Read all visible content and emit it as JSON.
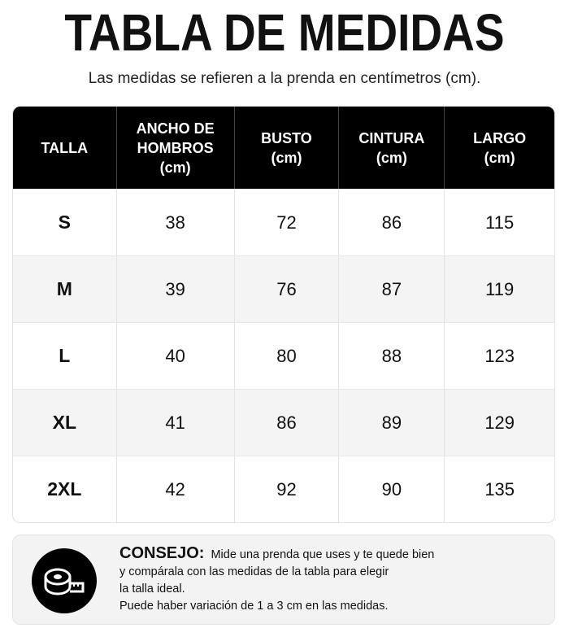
{
  "header": {
    "title": "TABLA DE MEDIDAS",
    "subtitle": "Las medidas se refieren a la prenda en centímetros (cm)."
  },
  "table": {
    "columns": [
      "TALLA",
      "ANCHO DE\nHOMBROS\n(cm)",
      "BUSTO\n(cm)",
      "CINTURA\n(cm)",
      "LARGO\n(cm)"
    ],
    "rows": [
      [
        "S",
        "38",
        "72",
        "86",
        "115"
      ],
      [
        "M",
        "39",
        "76",
        "87",
        "119"
      ],
      [
        "L",
        "40",
        "80",
        "88",
        "123"
      ],
      [
        "XL",
        "41",
        "86",
        "89",
        "129"
      ],
      [
        "2XL",
        "42",
        "92",
        "90",
        "135"
      ]
    ]
  },
  "tip": {
    "label": "CONSEJO:",
    "text": "Mide una prenda que uses y te quede bien\ny compárala con las medidas de la tabla para elegir\nla talla ideal.",
    "note": "Puede haber variación de 1 a 3 cm en las medidas."
  }
}
